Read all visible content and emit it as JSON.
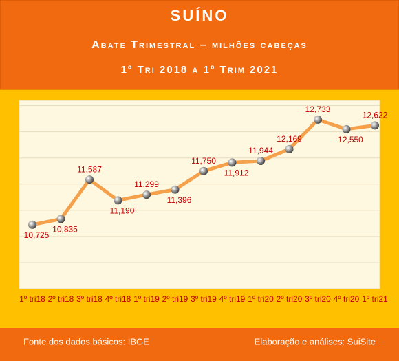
{
  "chart_data": {
    "type": "line",
    "title": "SUÍNO",
    "subtitle": "Abate Trimestral – milhões cabeças",
    "period": "1º Tri 2018 a 1º Trim 2021",
    "categories": [
      "1º tri18",
      "2º tri18",
      "3º tri18",
      "4º tri18",
      "1º tri19",
      "2º tri19",
      "3º tri19",
      "4º tri19",
      "1º tri20",
      "2º tri20",
      "3º tri20",
      "4º tri20",
      "1º tri21"
    ],
    "series": [
      {
        "name": "Abate",
        "color": "#f5a04a",
        "values": [
          10.725,
          10.835,
          11.587,
          11.19,
          11.299,
          11.396,
          11.75,
          11.912,
          11.944,
          12.169,
          12.733,
          12.55,
          12.622
        ],
        "value_labels": [
          "10,725",
          "10,835",
          "11,587",
          "11,190",
          "11,299",
          "11,396",
          "11,750",
          "11,912",
          "11,944",
          "12,169",
          "12,733",
          "12,550",
          "12,622"
        ]
      }
    ],
    "ylim": [
      9.5,
      13.1
    ],
    "yticks": [
      9.5,
      10,
      10.5,
      11,
      11.5,
      12,
      12.5,
      13
    ],
    "grid": true,
    "source": "Fonte dos dados básicos: IBGE",
    "credit": "Elaboração e análises: SuiSite"
  }
}
